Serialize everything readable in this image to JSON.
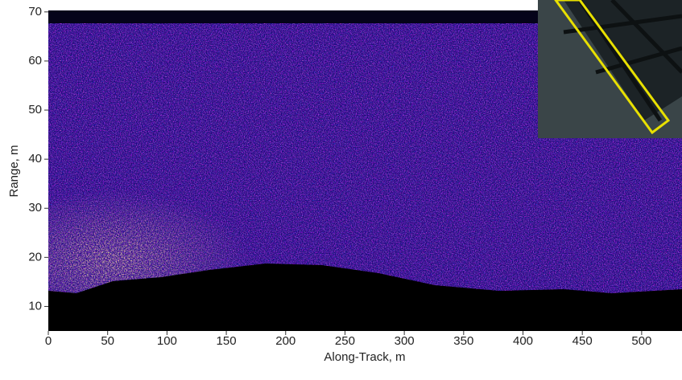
{
  "chart_data": {
    "type": "heatmap",
    "xlabel": "Along-Track, m",
    "ylabel": "Range, m",
    "xlim": [
      0,
      534
    ],
    "ylim": [
      5,
      70.3
    ],
    "xticks": [
      0,
      50,
      100,
      150,
      200,
      250,
      300,
      350,
      400,
      450,
      500
    ],
    "yticks": [
      10,
      20,
      30,
      40,
      50,
      60,
      70
    ]
  }
}
